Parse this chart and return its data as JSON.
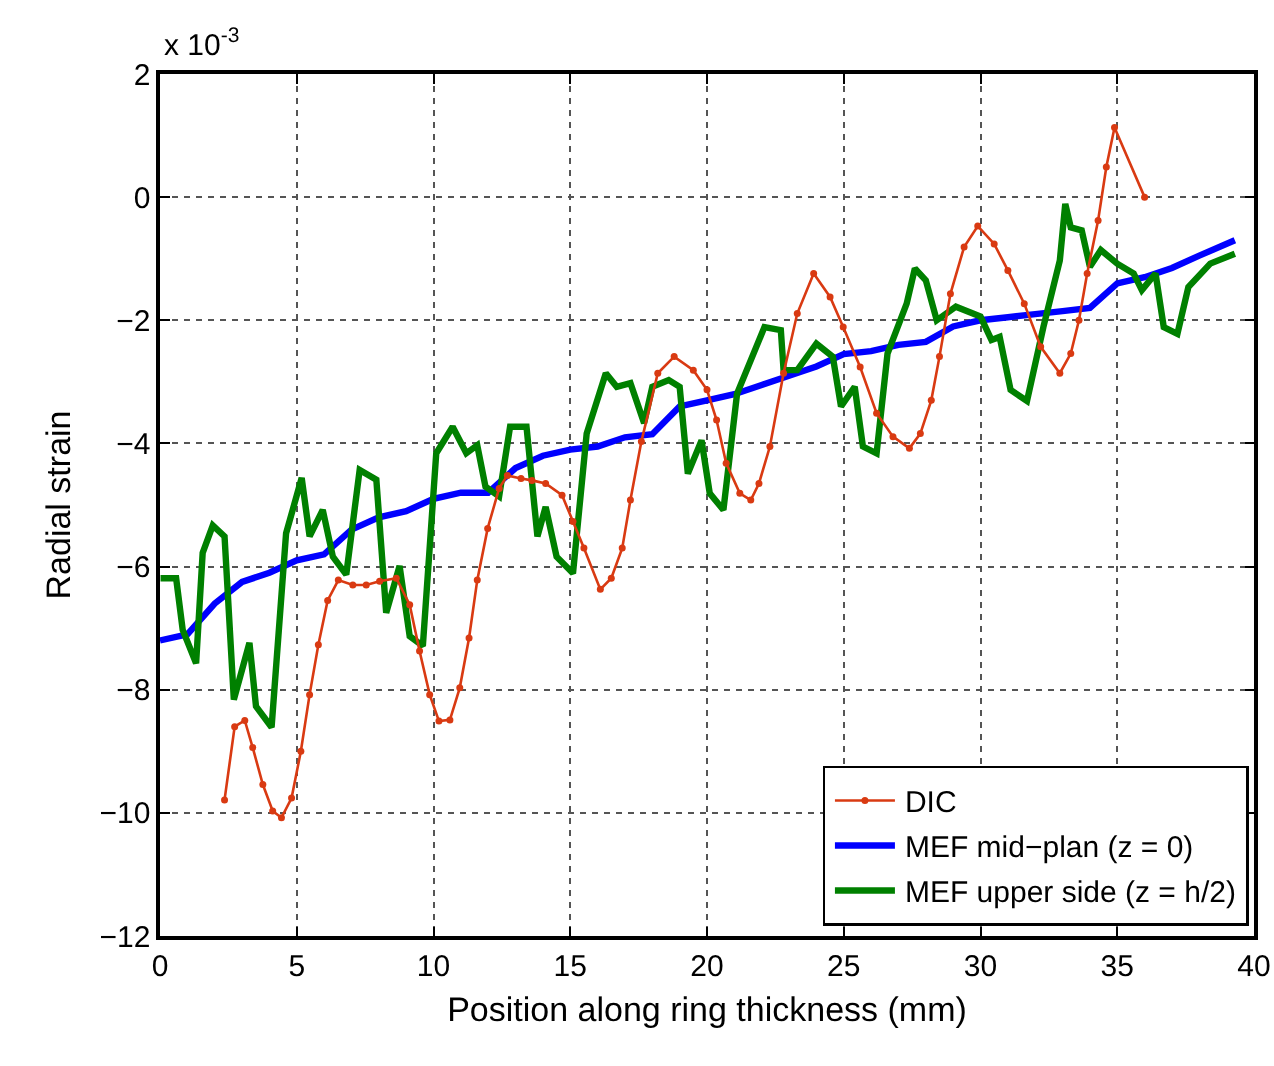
{
  "chart_data": {
    "type": "line",
    "xlabel": "Position along ring thickness (mm)",
    "ylabel": "Radial strain",
    "annotations": [
      "x 10$^{-3}$"
    ],
    "xlim": [
      0,
      40
    ],
    "xticks": [
      0,
      5,
      10,
      15,
      20,
      25,
      30,
      35,
      40
    ],
    "ylim": [
      -12,
      2
    ],
    "yticks": [
      -12,
      -10,
      -8,
      -6,
      -4,
      -2,
      0,
      2
    ],
    "grid": true,
    "legend": "bottom right",
    "line_style": "solid",
    "series": [
      {
        "name": "DIC",
        "color": "#d93a12",
        "marker": "circle",
        "x": [
          2.36,
          2.73,
          3.1,
          3.39,
          3.76,
          4.12,
          4.44,
          4.81,
          5.15,
          5.47,
          5.79,
          6.13,
          6.52,
          7.05,
          7.54,
          8.03,
          8.64,
          9.13,
          9.49,
          9.86,
          10.2,
          10.6,
          10.96,
          11.3,
          11.6,
          11.98,
          12.4,
          12.7,
          13.2,
          13.6,
          14.1,
          14.7,
          15.1,
          15.5,
          16.1,
          16.5,
          16.9,
          17.2,
          17.6,
          18.2,
          18.8,
          19.5,
          20.0,
          20.35,
          20.7,
          21.2,
          21.6,
          21.9,
          22.3,
          22.8,
          23.3,
          23.9,
          24.5,
          24.98,
          25.6,
          26.2,
          26.8,
          27.4,
          27.8,
          28.2,
          28.5,
          28.9,
          29.4,
          29.9,
          30.5,
          31.0,
          31.6,
          32.2,
          32.9,
          33.3,
          33.6,
          33.9,
          34.3,
          34.6,
          34.9,
          36.0
        ],
        "values": [
          -9.79,
          -8.6,
          -8.5,
          -8.94,
          -9.54,
          -9.97,
          -10.08,
          -9.76,
          -9.0,
          -8.08,
          -7.27,
          -6.55,
          -6.22,
          -6.3,
          -6.3,
          -6.24,
          -6.19,
          -6.62,
          -7.37,
          -8.08,
          -8.51,
          -8.49,
          -7.97,
          -7.16,
          -6.22,
          -5.38,
          -4.73,
          -4.52,
          -4.57,
          -4.6,
          -4.65,
          -4.84,
          -5.27,
          -5.7,
          -6.37,
          -6.19,
          -5.7,
          -4.92,
          -3.97,
          -2.86,
          -2.59,
          -2.81,
          -3.13,
          -3.62,
          -4.32,
          -4.81,
          -4.92,
          -4.65,
          -4.05,
          -2.86,
          -1.89,
          -1.24,
          -1.62,
          -2.11,
          -2.76,
          -3.51,
          -3.89,
          -4.08,
          -3.84,
          -3.3,
          -2.59,
          -1.57,
          -0.81,
          -0.47,
          -0.76,
          -1.19,
          -1.73,
          -2.43,
          -2.86,
          -2.54,
          -2.0,
          -1.24,
          -0.38,
          0.49,
          1.13,
          0
        ]
      },
      {
        "name": "MEF mid−plan (z = 0)",
        "color": "#0000ff",
        "marker": "none",
        "x": [
          0,
          1,
          2,
          3,
          4,
          5,
          6,
          7,
          8,
          9,
          10,
          11,
          12,
          13,
          14,
          15,
          16,
          17,
          18,
          19,
          20,
          21,
          22,
          23,
          24,
          25,
          26,
          27,
          28,
          29,
          30,
          31,
          32,
          33,
          34,
          35,
          36,
          37,
          38,
          39.3
        ],
        "values": [
          -7.2,
          -7.1,
          -6.6,
          -6.25,
          -6.1,
          -5.9,
          -5.8,
          -5.4,
          -5.2,
          -5.1,
          -4.9,
          -4.8,
          -4.8,
          -4.4,
          -4.2,
          -4.1,
          -4.05,
          -3.9,
          -3.85,
          -3.4,
          -3.3,
          -3.2,
          -3.05,
          -2.9,
          -2.75,
          -2.55,
          -2.5,
          -2.4,
          -2.35,
          -2.1,
          -2.0,
          -1.95,
          -1.9,
          -1.85,
          -1.8,
          -1.4,
          -1.3,
          -1.15,
          -0.95,
          -0.7
        ]
      },
      {
        "name": "MEF upper side (z = h/2)",
        "color": "#008000",
        "marker": "none",
        "x": [
          0.02,
          0.59,
          0.83,
          1.32,
          1.56,
          1.93,
          2.36,
          2.7,
          3.27,
          3.51,
          4.08,
          4.61,
          5.18,
          5.47,
          5.95,
          6.32,
          6.81,
          7.3,
          7.91,
          8.27,
          8.76,
          9.13,
          9.61,
          10.1,
          10.7,
          11.2,
          11.6,
          11.9,
          12.4,
          12.8,
          13.4,
          13.8,
          14.1,
          14.5,
          15.1,
          15.6,
          16.3,
          16.7,
          17.2,
          17.7,
          18.0,
          18.6,
          19.0,
          19.3,
          19.8,
          20.1,
          20.6,
          21.1,
          22.1,
          22.7,
          22.8,
          23.3,
          24.0,
          24.6,
          24.9,
          25.4,
          25.7,
          26.2,
          26.6,
          27.3,
          27.6,
          28.0,
          28.4,
          29.1,
          30.0,
          30.4,
          30.7,
          31.1,
          31.7,
          32.3,
          32.9,
          33.1,
          33.3,
          33.7,
          34.0,
          34.4,
          35.0,
          35.6,
          35.9,
          36.4,
          36.7,
          37.2,
          37.6,
          38.4,
          39.3
        ],
        "values": [
          -6.19,
          -6.19,
          -7.03,
          -7.57,
          -5.78,
          -5.33,
          -5.51,
          -8.16,
          -7.24,
          -8.27,
          -8.61,
          -5.46,
          -4.56,
          -5.51,
          -5.08,
          -5.84,
          -6.13,
          -4.43,
          -4.59,
          -6.75,
          -5.99,
          -7.13,
          -7.29,
          -4.16,
          -3.73,
          -4.16,
          -4.03,
          -4.7,
          -4.86,
          -3.73,
          -3.73,
          -5.51,
          -5.03,
          -5.84,
          -6.11,
          -3.84,
          -2.86,
          -3.08,
          -3.02,
          -3.67,
          -3.08,
          -2.97,
          -3.08,
          -4.49,
          -3.95,
          -4.81,
          -5.08,
          -3.19,
          -2.11,
          -2.16,
          -2.81,
          -2.81,
          -2.38,
          -2.59,
          -3.4,
          -3.08,
          -4.05,
          -4.16,
          -2.54,
          -1.73,
          -1.16,
          -1.35,
          -2.0,
          -1.78,
          -1.94,
          -2.32,
          -2.27,
          -3.13,
          -3.31,
          -2.11,
          -1.03,
          -0.11,
          -0.49,
          -0.54,
          -1.13,
          -0.86,
          -1.08,
          -1.24,
          -1.51,
          -1.24,
          -2.11,
          -2.22,
          -1.46,
          -1.08,
          -0.92
        ]
      }
    ]
  }
}
